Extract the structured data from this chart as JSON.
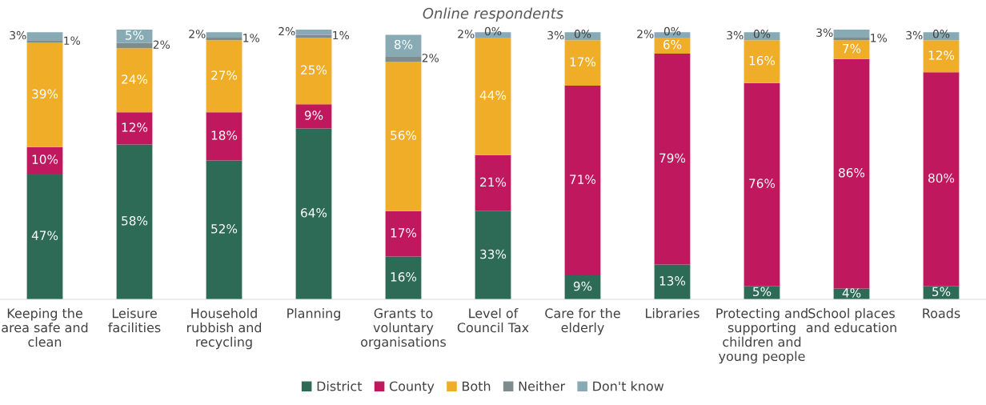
{
  "chart_data": {
    "type": "bar",
    "stacked": true,
    "subtitle": "Online respondents",
    "categories": [
      "Keeping the area safe and clean",
      "Leisure facilities",
      "Household rubbish and recycling",
      "Planning",
      "Grants to voluntary organisations",
      "Level of Council Tax",
      "Care for the elderly",
      "Libraries",
      "Protecting and supporting children and young people",
      "School places and education",
      "Roads"
    ],
    "series": [
      {
        "name": "District",
        "color": "#2e6b57",
        "values": [
          47,
          58,
          52,
          64,
          16,
          33,
          9,
          13,
          5,
          4,
          5
        ],
        "value_labels": [
          "47%",
          "58%",
          "52%",
          "64%",
          "16%",
          "33%",
          "9%",
          "13%",
          "5%",
          "4%",
          "5%"
        ]
      },
      {
        "name": "County",
        "color": "#c0185e",
        "values": [
          10,
          12,
          18,
          9,
          17,
          21,
          71,
          79,
          76,
          86,
          80
        ],
        "value_labels": [
          "10%",
          "12%",
          "18%",
          "9%",
          "17%",
          "21%",
          "71%",
          "79%",
          "76%",
          "86%",
          "80%"
        ]
      },
      {
        "name": "Both",
        "color": "#f0ad28",
        "values": [
          39,
          24,
          27,
          25,
          56,
          44,
          17,
          6,
          16,
          7,
          12
        ],
        "value_labels": [
          "39%",
          "24%",
          "27%",
          "25%",
          "56%",
          "44%",
          "17%",
          "6%",
          "16%",
          "7%",
          "12%"
        ]
      },
      {
        "name": "Neither",
        "color": "#7f8c8d",
        "values": [
          1,
          2,
          1,
          1,
          2,
          0,
          0,
          0,
          0,
          1,
          0
        ],
        "value_labels": [
          "1%",
          "2%",
          "1%",
          "1%",
          "2%",
          "0%",
          "0%",
          "0%",
          "0%",
          "1%",
          "0%"
        ]
      },
      {
        "name": "Don't know",
        "color": "#87aab4",
        "values": [
          3,
          5,
          2,
          2,
          8,
          2,
          3,
          2,
          3,
          3,
          3
        ],
        "value_labels": [
          "3%",
          "5%",
          "2%",
          "2%",
          "8%",
          "2%",
          "3%",
          "2%",
          "3%",
          "3%",
          "3%"
        ]
      }
    ],
    "grid": false,
    "legend": "bottom"
  }
}
